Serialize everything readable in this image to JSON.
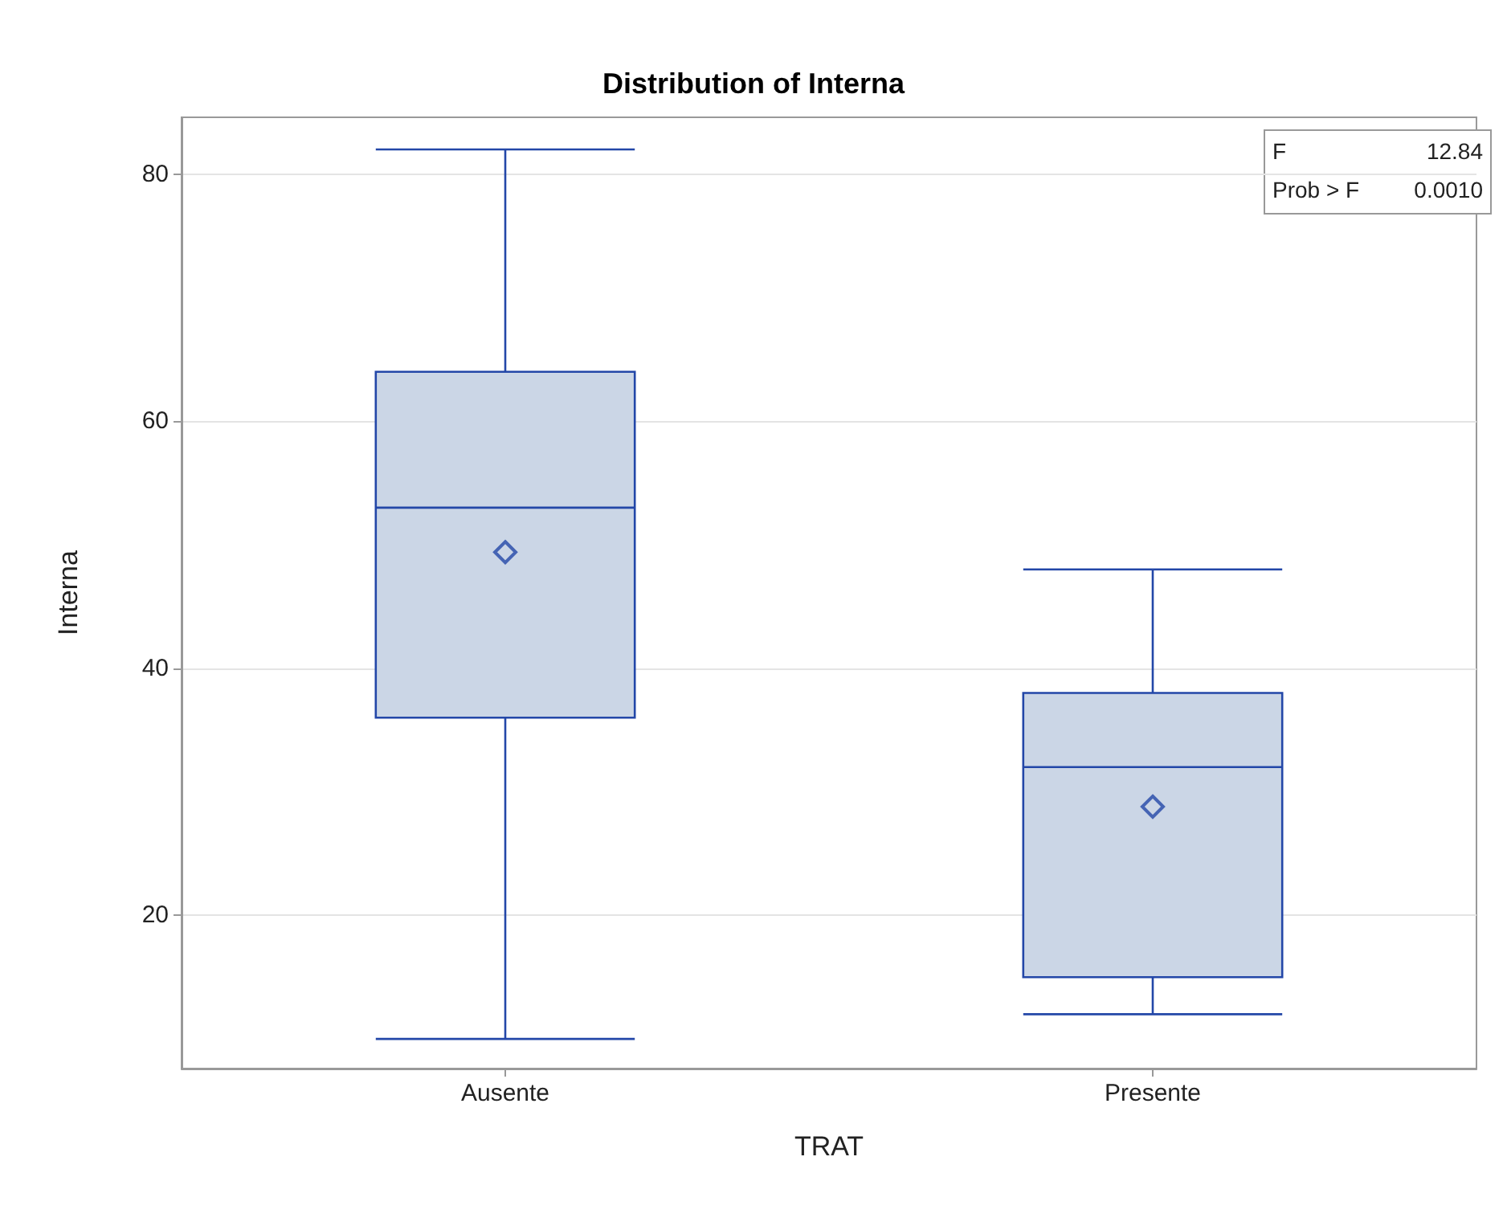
{
  "chart_data": {
    "type": "box",
    "title": "Distribution of Interna",
    "xlabel": "TRAT",
    "ylabel": "Interna",
    "categories": [
      "Ausente",
      "Presente"
    ],
    "boxes": [
      {
        "low": 10,
        "q1": 36,
        "median": 53,
        "q3": 64,
        "high": 82,
        "mean": 49.4
      },
      {
        "low": 12,
        "q1": 15,
        "median": 32,
        "q3": 38,
        "high": 48,
        "mean": 28.8
      }
    ],
    "color": "#cbd6e6",
    "ylim": [
      7.6,
      84.6
    ],
    "yticks": [
      20,
      40,
      60,
      80
    ],
    "grid": "y",
    "marker": "diamond",
    "annotations": [
      "F",
      "12.84",
      "Prob > F",
      "0.0010"
    ]
  }
}
